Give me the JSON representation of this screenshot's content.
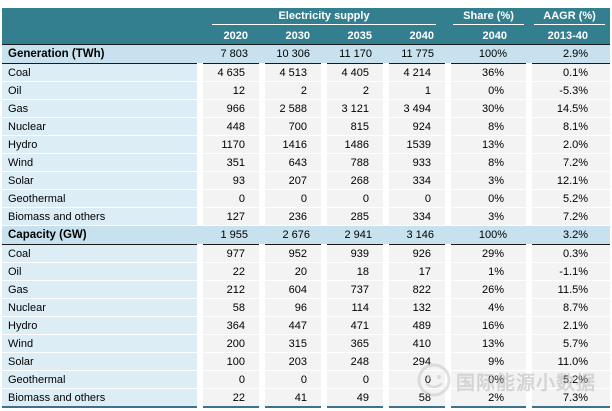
{
  "header": {
    "group_label": "Electricity supply",
    "share_label": "Share (%)",
    "aagr_label": "AAGR (%)",
    "year_cols": [
      "2020",
      "2030",
      "2035",
      "2040"
    ],
    "share_sub": "2040",
    "aagr_sub": "2013-40"
  },
  "sections": [
    {
      "title": "Generation (TWh)",
      "totals": [
        "7 803",
        "10 306",
        "11 170",
        "11 775",
        "100%",
        "2.9%"
      ],
      "rows": [
        {
          "label": "Coal",
          "values": [
            "4 635",
            "4 513",
            "4 405",
            "4 214",
            "36%",
            "0.1%"
          ]
        },
        {
          "label": "Oil",
          "values": [
            "12",
            "2",
            "2",
            "1",
            "0%",
            "-5.3%"
          ]
        },
        {
          "label": "Gas",
          "values": [
            "966",
            "2 588",
            "3 121",
            "3 494",
            "30%",
            "14.5%"
          ]
        },
        {
          "label": "Nuclear",
          "values": [
            "448",
            "700",
            "815",
            "924",
            "8%",
            "8.1%"
          ]
        },
        {
          "label": "Hydro",
          "values": [
            "1170",
            "1416",
            "1486",
            "1539",
            "13%",
            "2.0%"
          ]
        },
        {
          "label": "Wind",
          "values": [
            "351",
            "643",
            "788",
            "933",
            "8%",
            "7.2%"
          ]
        },
        {
          "label": "Solar",
          "values": [
            "93",
            "207",
            "268",
            "334",
            "3%",
            "12.1%"
          ]
        },
        {
          "label": "Geothermal",
          "values": [
            "0",
            "0",
            "0",
            "0",
            "0%",
            "5.2%"
          ]
        },
        {
          "label": "Biomass and others",
          "values": [
            "127",
            "236",
            "285",
            "334",
            "3%",
            "7.2%"
          ]
        }
      ]
    },
    {
      "title": "Capacity (GW)",
      "totals": [
        "1 955",
        "2 676",
        "2 941",
        "3 146",
        "100%",
        "3.2%"
      ],
      "rows": [
        {
          "label": "Coal",
          "values": [
            "977",
            "952",
            "939",
            "926",
            "29%",
            "0.3%"
          ]
        },
        {
          "label": "Oil",
          "values": [
            "22",
            "20",
            "18",
            "17",
            "1%",
            "-1.1%"
          ]
        },
        {
          "label": "Gas",
          "values": [
            "212",
            "604",
            "737",
            "822",
            "26%",
            "11.5%"
          ]
        },
        {
          "label": "Nuclear",
          "values": [
            "58",
            "96",
            "114",
            "132",
            "4%",
            "8.7%"
          ]
        },
        {
          "label": "Hydro",
          "values": [
            "364",
            "447",
            "471",
            "489",
            "16%",
            "2.1%"
          ]
        },
        {
          "label": "Wind",
          "values": [
            "200",
            "315",
            "365",
            "410",
            "13%",
            "5.7%"
          ]
        },
        {
          "label": "Solar",
          "values": [
            "100",
            "203",
            "248",
            "294",
            "9%",
            "11.0%"
          ]
        },
        {
          "label": "Geothermal",
          "values": [
            "0",
            "0",
            "0",
            "0",
            "0%",
            "5.2%"
          ]
        },
        {
          "label": "Biomass and others",
          "values": [
            "22",
            "41",
            "49",
            "58",
            "2%",
            "7.3%"
          ]
        }
      ]
    }
  ],
  "watermark": {
    "text": "国际能源小数据"
  },
  "colors": {
    "teal": "#337F8F",
    "section_blue": "#C7E2EE",
    "label_blue": "#DCEDF6",
    "cell_gray": "#F3F3F3",
    "bottom_border": "#41708C"
  }
}
